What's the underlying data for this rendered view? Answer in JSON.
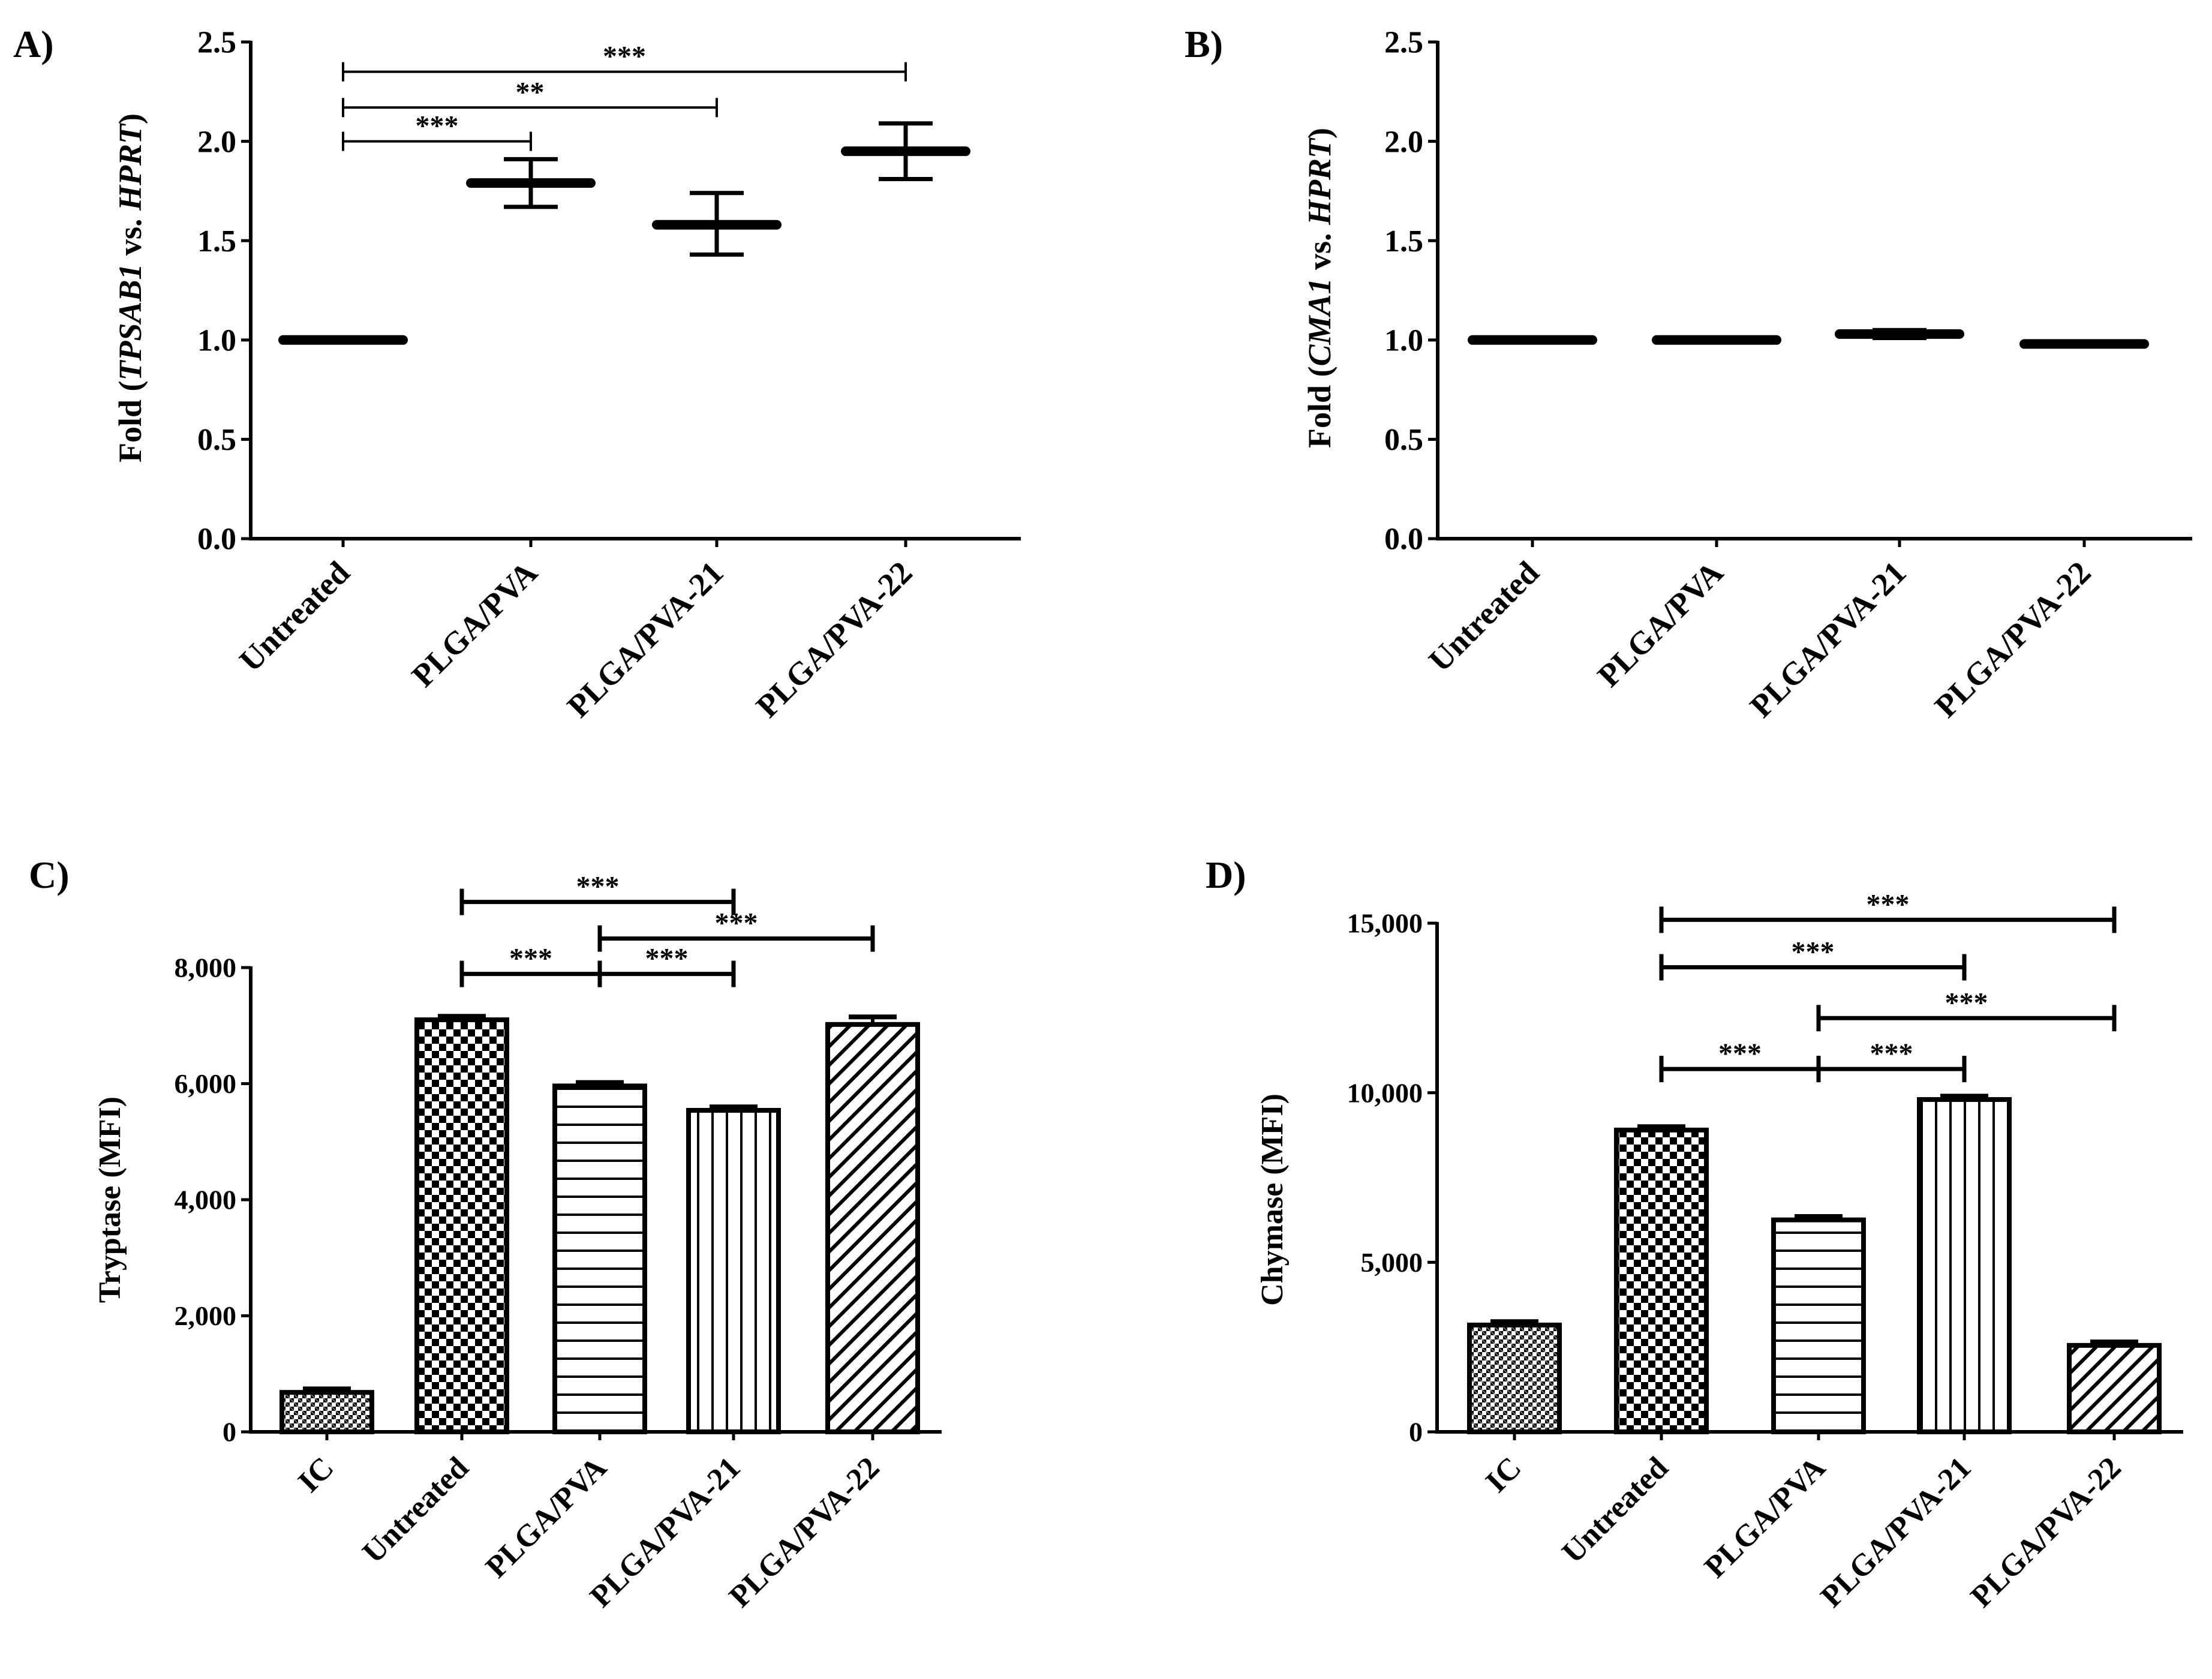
{
  "chart_data": [
    {
      "panel_label": "A)",
      "type": "scatter",
      "ylabel_parts": [
        "Fold (",
        "TPSAB1",
        " vs. ",
        "HPRT",
        ")"
      ],
      "ylabel_italic": [
        false,
        true,
        false,
        true,
        false
      ],
      "categories": [
        "Untreated",
        "PLGA/PVA",
        "PLGA/PVA-21",
        "PLGA/PVA-22"
      ],
      "series": [
        {
          "name": "mean",
          "values": [
            1.0,
            1.79,
            1.58,
            1.95
          ],
          "err_low": [
            1.0,
            1.67,
            1.43,
            1.81
          ],
          "err_high": [
            1.0,
            1.91,
            1.74,
            2.09
          ]
        }
      ],
      "ylim": [
        0,
        2.5
      ],
      "yticks": [
        0,
        0.5,
        1.0,
        1.5,
        2.0,
        2.5
      ],
      "ytick_labels": [
        "0.0",
        "0.5",
        "1.0",
        "1.5",
        "2.0",
        "2.5"
      ],
      "significance": [
        {
          "from": 0,
          "to": 3,
          "label": "***",
          "y": 2.35
        },
        {
          "from": 0,
          "to": 2,
          "label": "**",
          "y": 2.17
        },
        {
          "from": 0,
          "to": 1,
          "label": "***",
          "y": 2.0
        }
      ]
    },
    {
      "panel_label": "B)",
      "type": "scatter",
      "ylabel_parts": [
        "Fold (",
        "CMA1",
        " vs. ",
        "HPRT",
        ")"
      ],
      "ylabel_italic": [
        false,
        true,
        false,
        true,
        false
      ],
      "categories": [
        "Untreated",
        "PLGA/PVA",
        "PLGA/PVA-21",
        "PLGA/PVA-22"
      ],
      "series": [
        {
          "name": "mean",
          "values": [
            1.0,
            1.0,
            1.03,
            0.98
          ],
          "err_low": [
            1.0,
            0.99,
            1.01,
            0.97
          ],
          "err_high": [
            1.0,
            1.01,
            1.05,
            0.99
          ]
        }
      ],
      "ylim": [
        0,
        2.5
      ],
      "yticks": [
        0,
        0.5,
        1.0,
        1.5,
        2.0,
        2.5
      ],
      "ytick_labels": [
        "0.0",
        "0.5",
        "1.0",
        "1.5",
        "2.0",
        "2.5"
      ],
      "significance": []
    },
    {
      "panel_label": "C)",
      "type": "bar",
      "ylabel": "Tryptase (MFI)",
      "categories": [
        "IC",
        "Untreated",
        "PLGA/PVA",
        "PLGA/PVA-21",
        "PLGA/PVA-22"
      ],
      "series": [
        {
          "name": "MFI",
          "values": [
            680,
            7100,
            5960,
            5540,
            7020
          ],
          "err": [
            60,
            60,
            60,
            60,
            130
          ]
        }
      ],
      "patterns": [
        "dense-check",
        "check",
        "hlines",
        "vlines",
        "diag"
      ],
      "ylim": [
        0,
        8000
      ],
      "yticks": [
        0,
        2000,
        4000,
        6000,
        8000
      ],
      "ytick_labels": [
        "0",
        "2,000",
        "4,000",
        "6,000",
        "8,000"
      ],
      "significance": [
        {
          "from": 1,
          "to": 3,
          "label": "***",
          "y": 9130
        },
        {
          "from": 2,
          "to": 4,
          "label": "***",
          "y": 8500
        },
        {
          "from": 1,
          "to": 2,
          "label": "***",
          "y": 7890
        },
        {
          "from": 2,
          "to": 3,
          "label": "***",
          "y": 7890
        }
      ]
    },
    {
      "panel_label": "D)",
      "type": "bar",
      "ylabel": "Chymase (MFI)",
      "categories": [
        "IC",
        "Untreated",
        "PLGA/PVA",
        "PLGA/PVA-21",
        "PLGA/PVA-22"
      ],
      "series": [
        {
          "name": "MFI",
          "values": [
            3150,
            8900,
            6250,
            9800,
            2550
          ],
          "err": [
            100,
            100,
            100,
            100,
            100
          ]
        }
      ],
      "patterns": [
        "dense-check",
        "check",
        "hlines",
        "vlines",
        "diag"
      ],
      "ylim": [
        0,
        15000
      ],
      "yticks": [
        0,
        5000,
        10000,
        15000
      ],
      "ytick_labels": [
        "0",
        "5,000",
        "10,000",
        "15,000"
      ],
      "significance": [
        {
          "from": 1,
          "to": 4,
          "label": "***",
          "y": 15100
        },
        {
          "from": 1,
          "to": 3,
          "label": "***",
          "y": 13700
        },
        {
          "from": 2,
          "to": 4,
          "label": "***",
          "y": 12200
        },
        {
          "from": 1,
          "to": 2,
          "label": "***",
          "y": 10700
        },
        {
          "from": 2,
          "to": 3,
          "label": "***",
          "y": 10700
        }
      ]
    }
  ]
}
